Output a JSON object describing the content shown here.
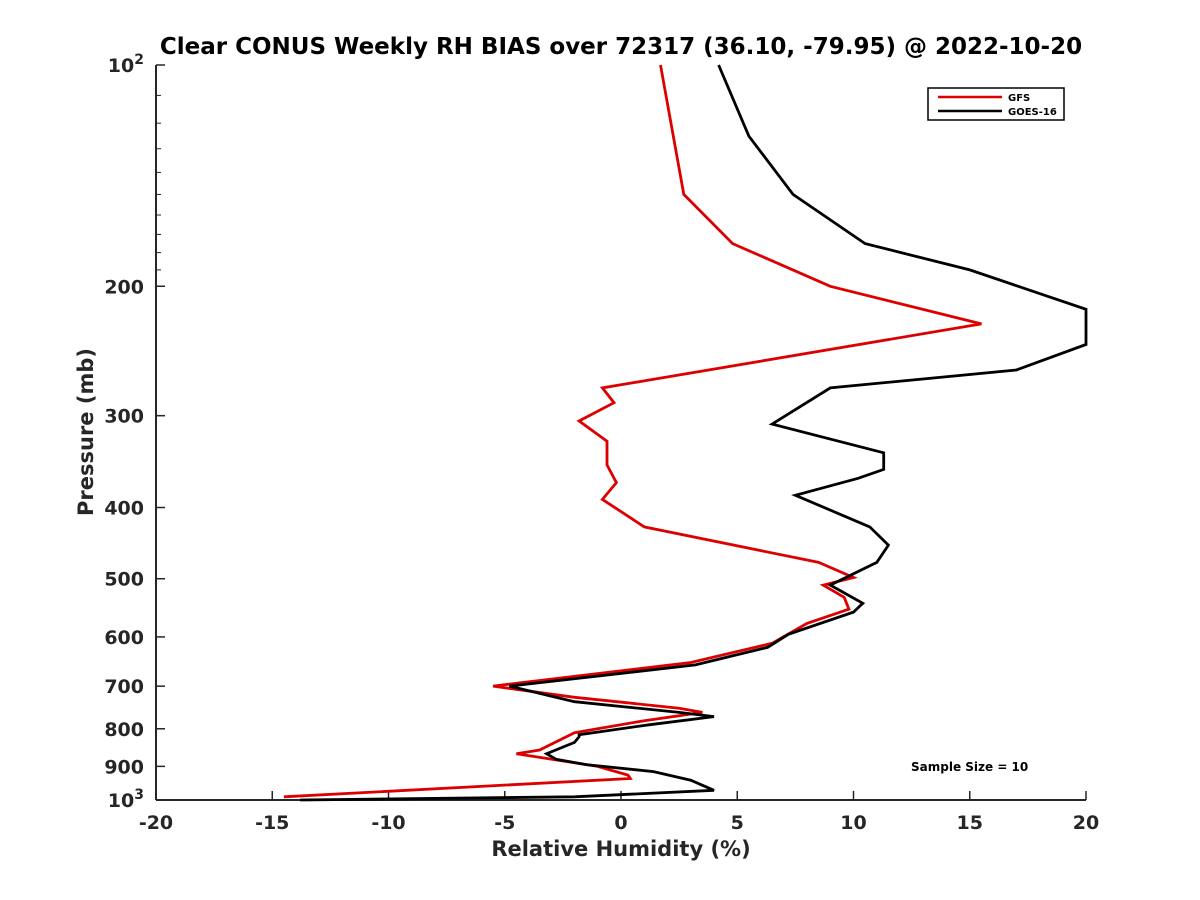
{
  "chart_data": {
    "type": "line",
    "title": "Clear CONUS Weekly RH BIAS over 72317 (36.10, -79.95) @ 2022-10-20",
    "xlabel": "Relative Humidity (%)",
    "ylabel": "Pressure (mb)",
    "xlim": [
      -20,
      20
    ],
    "ylim": [
      100,
      1000
    ],
    "y_scale": "log",
    "y_direction": "reversed",
    "x_ticks": [
      "-20",
      "-15",
      "-10",
      "-5",
      "0",
      "5",
      "10",
      "15",
      "20"
    ],
    "y_ticks": [
      {
        "value": 100,
        "base": "10",
        "exp": "2"
      },
      {
        "value": 200,
        "label": "200"
      },
      {
        "value": 300,
        "label": "300"
      },
      {
        "value": 400,
        "label": "400"
      },
      {
        "value": 500,
        "label": "500"
      },
      {
        "value": 600,
        "label": "600"
      },
      {
        "value": 700,
        "label": "700"
      },
      {
        "value": 800,
        "label": "800"
      },
      {
        "value": 900,
        "label": "900"
      },
      {
        "value": 1000,
        "base": "10",
        "exp": "3"
      }
    ],
    "grid": false,
    "legend_position": "top-right",
    "annotation": "Sample Size = 10",
    "series": [
      {
        "name": "GFS",
        "color": "#dd0000",
        "points": [
          [
            1.7,
            100
          ],
          [
            2.7,
            150
          ],
          [
            4.8,
            175
          ],
          [
            9.0,
            200
          ],
          [
            15.5,
            225
          ],
          [
            -0.8,
            275
          ],
          [
            -0.3,
            288
          ],
          [
            -1.8,
            305
          ],
          [
            -0.6,
            325
          ],
          [
            -0.6,
            350
          ],
          [
            -0.2,
            370
          ],
          [
            -0.8,
            390
          ],
          [
            1.0,
            425
          ],
          [
            8.5,
            475
          ],
          [
            10.0,
            498
          ],
          [
            8.7,
            510
          ],
          [
            9.6,
            530
          ],
          [
            9.8,
            550
          ],
          [
            8.0,
            575
          ],
          [
            6.5,
            612
          ],
          [
            3.0,
            650
          ],
          [
            -5.5,
            700
          ],
          [
            -2.0,
            725
          ],
          [
            2.5,
            750
          ],
          [
            3.5,
            760
          ],
          [
            1.0,
            780
          ],
          [
            -2.0,
            810
          ],
          [
            -3.5,
            855
          ],
          [
            -4.5,
            865
          ],
          [
            -1.0,
            900
          ],
          [
            0.3,
            925
          ],
          [
            0.4,
            935
          ],
          [
            -14.5,
            990
          ]
        ]
      },
      {
        "name": "GOES-16",
        "color": "#000000",
        "points": [
          [
            4.2,
            100
          ],
          [
            5.5,
            125
          ],
          [
            7.4,
            150
          ],
          [
            10.5,
            175
          ],
          [
            15.0,
            190
          ],
          [
            20.0,
            215
          ],
          [
            20.0,
            240
          ],
          [
            17.0,
            260
          ],
          [
            9.0,
            275
          ],
          [
            6.5,
            308
          ],
          [
            11.3,
            337
          ],
          [
            11.3,
            355
          ],
          [
            10.2,
            365
          ],
          [
            7.5,
            385
          ],
          [
            10.7,
            425
          ],
          [
            11.5,
            450
          ],
          [
            11.0,
            475
          ],
          [
            9.0,
            510
          ],
          [
            10.4,
            540
          ],
          [
            10.0,
            555
          ],
          [
            7.2,
            595
          ],
          [
            6.3,
            620
          ],
          [
            3.2,
            655
          ],
          [
            -4.8,
            700
          ],
          [
            -2.0,
            735
          ],
          [
            2.5,
            760
          ],
          [
            4.0,
            770
          ],
          [
            1.2,
            790
          ],
          [
            -1.8,
            815
          ],
          [
            -1.8,
            820
          ],
          [
            -2.0,
            835
          ],
          [
            -3.2,
            865
          ],
          [
            -2.8,
            880
          ],
          [
            -1.5,
            895
          ],
          [
            1.4,
            915
          ],
          [
            3.0,
            940
          ],
          [
            4.0,
            970
          ],
          [
            -2.0,
            990
          ],
          [
            -13.8,
            1000
          ]
        ]
      }
    ]
  }
}
